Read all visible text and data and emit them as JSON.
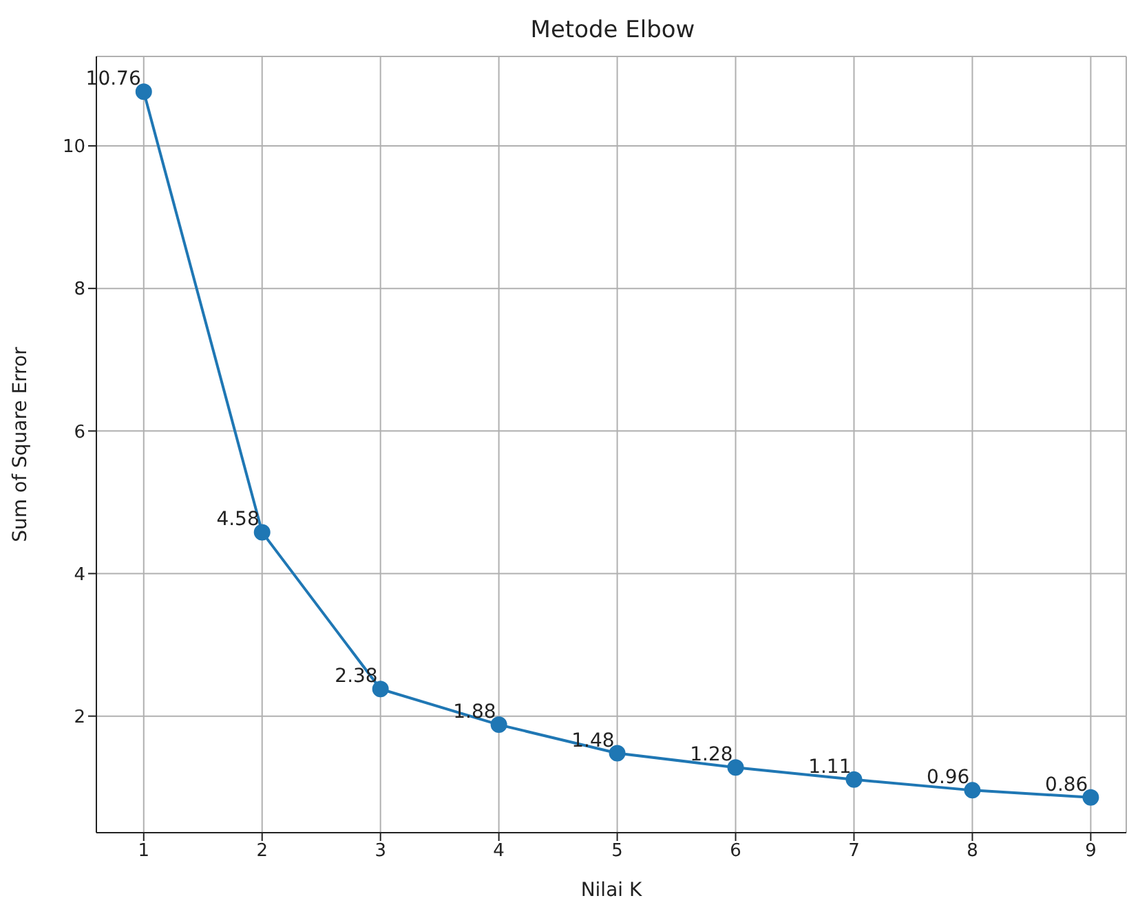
{
  "chart_data": {
    "type": "line",
    "title": "Metode Elbow",
    "xlabel": "Nilai K",
    "ylabel": "Sum of Square Error",
    "x": [
      1,
      2,
      3,
      4,
      5,
      6,
      7,
      8,
      9
    ],
    "series": [
      {
        "color": "#1f77b4",
        "values": [
          10.76,
          4.58,
          2.38,
          1.88,
          1.48,
          1.28,
          1.11,
          0.96,
          0.86
        ]
      }
    ],
    "xlim": [
      0.6,
      9.3
    ],
    "xticks": [
      1,
      2,
      3,
      4,
      5,
      6,
      7,
      8,
      9
    ],
    "ylim": [
      0.365,
      11.255
    ],
    "yticks": [
      2,
      4,
      6,
      8,
      10
    ],
    "grid": true,
    "marker": "circle",
    "line_style": "solid",
    "data_labels": true
  }
}
